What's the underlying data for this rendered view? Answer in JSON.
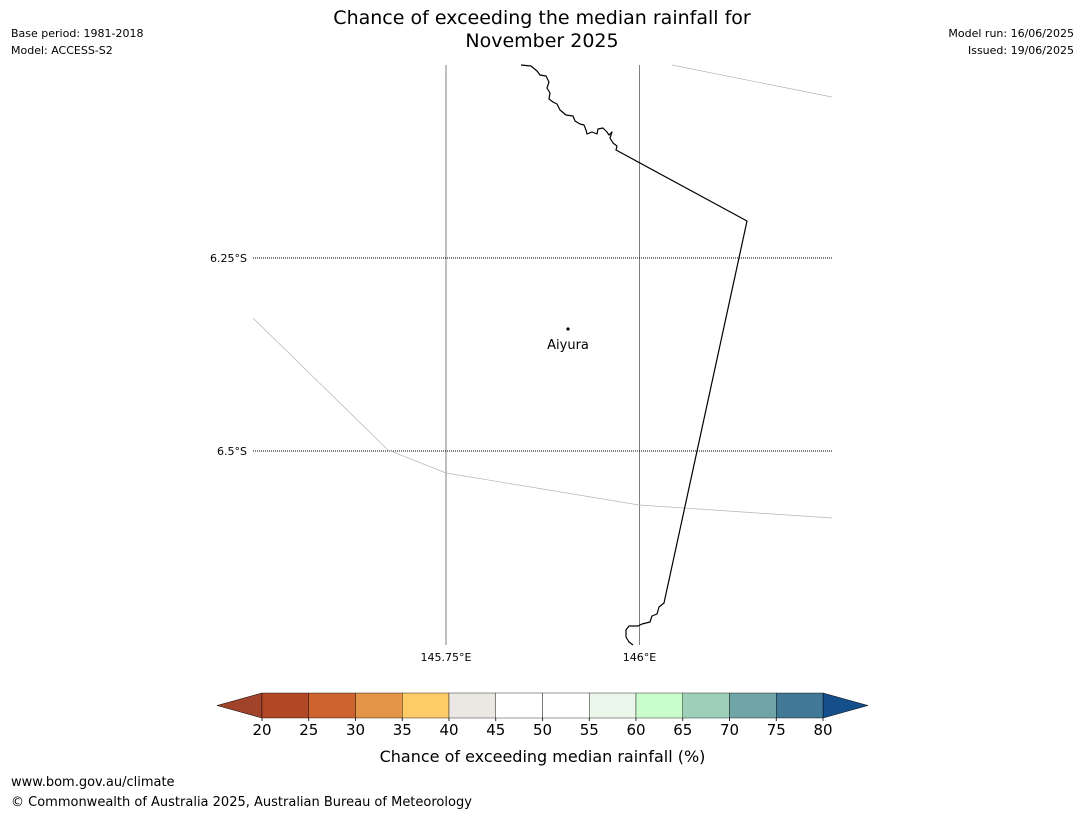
{
  "header": {
    "title_line1": "Chance of exceeding the median rainfall for",
    "title_line2": "November 2025",
    "base_period": "Base period: 1981-2018",
    "model": "Model: ACCESS-S2",
    "model_run": "Model run: 16/06/2025",
    "issued": "Issued: 19/06/2025"
  },
  "map": {
    "longitude_labels": [
      "145.75°E",
      "146°E"
    ],
    "latitude_labels": [
      "6.25°S",
      "6.5°S"
    ],
    "place": {
      "name": "Aiyura",
      "marker_icon": "location-dot-icon"
    },
    "colors": {
      "coastline": "#000000",
      "meridian": "#7f7f7f",
      "parallel": "#000000",
      "boundary": "#b5b5b5"
    }
  },
  "colorbar": {
    "label": "Chance of exceeding median rainfall (%)",
    "ticks": [
      "20",
      "25",
      "30",
      "35",
      "40",
      "45",
      "50",
      "55",
      "60",
      "65",
      "70",
      "75",
      "80"
    ],
    "colors": [
      "#b24725",
      "#cd6430",
      "#e39446",
      "#fdcc66",
      "#ebe8e3",
      "#ffffff",
      "#ffffff",
      "#eaf7ea",
      "#c9fdcb",
      "#9ecfb8",
      "#6fa5a6",
      "#417895"
    ],
    "under_color": "#a0432a",
    "over_color": "#144f8c"
  },
  "footer": {
    "url": "www.bom.gov.au/climate",
    "copyright": "© Commonwealth of Australia 2025, Australian Bureau of Meteorology"
  }
}
